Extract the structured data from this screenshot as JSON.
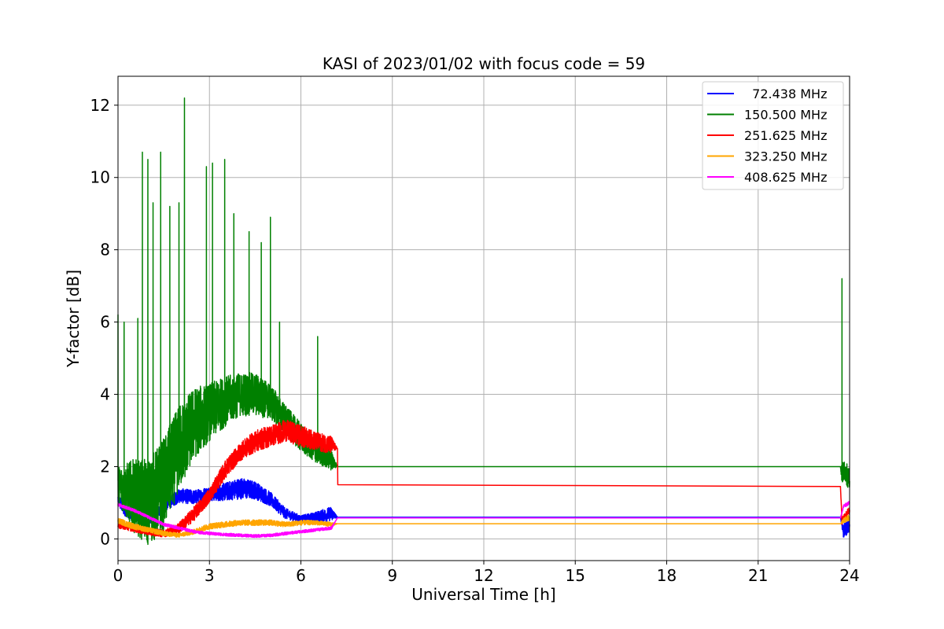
{
  "chart_data": {
    "type": "line",
    "title": "KASI of 2023/01/02 with focus code = 59",
    "xlabel": "Universal Time [h]",
    "ylabel": "Y-factor [dB]",
    "xlim": [
      0,
      24
    ],
    "ylim": [
      -0.6,
      12.8
    ],
    "xticks": [
      0,
      3,
      6,
      9,
      12,
      15,
      18,
      21,
      24
    ],
    "yticks": [
      0,
      2,
      4,
      6,
      8,
      10,
      12
    ],
    "grid": true,
    "legend_position": "top-right",
    "series": [
      {
        "name": "  72.438 MHz",
        "color": "#0000ff",
        "x": [
          0.0,
          0.2,
          0.5,
          1.0,
          1.5,
          2.0,
          2.5,
          3.0,
          3.5,
          4.0,
          4.5,
          5.0,
          5.5,
          6.0,
          6.5,
          7.0,
          7.2,
          23.7,
          23.8,
          24.0
        ],
        "y": [
          1.1,
          0.8,
          0.6,
          0.5,
          0.9,
          1.2,
          1.15,
          1.25,
          1.3,
          1.4,
          1.35,
          1.1,
          0.7,
          0.55,
          0.6,
          0.7,
          0.6,
          0.6,
          0.2,
          0.4
        ],
        "noise": [
          0.2,
          0.15,
          0.1,
          0.1,
          0.15,
          0.2,
          0.2,
          0.2,
          0.25,
          0.3,
          0.25,
          0.2,
          0.15,
          0.1,
          0.15,
          0.2,
          0.0,
          0.0,
          0.2,
          0.2
        ]
      },
      {
        "name": "150.500 MHz",
        "color": "#008000",
        "x": [
          0.0,
          0.5,
          1.0,
          1.5,
          2.0,
          2.5,
          3.0,
          3.5,
          4.0,
          4.5,
          5.0,
          5.5,
          6.0,
          6.5,
          7.0,
          7.2,
          23.7,
          23.75,
          23.85,
          24.0
        ],
        "y": [
          1.5,
          1.2,
          1.0,
          1.5,
          2.5,
          3.2,
          3.5,
          3.8,
          4.0,
          4.0,
          3.8,
          3.3,
          2.8,
          2.4,
          2.2,
          2.0,
          2.0,
          1.8,
          1.9,
          1.6
        ],
        "noise": [
          0.5,
          1.0,
          1.2,
          1.3,
          1.2,
          1.0,
          0.8,
          0.7,
          0.6,
          0.6,
          0.5,
          0.4,
          0.4,
          0.3,
          0.3,
          0.0,
          0.0,
          0.3,
          0.3,
          0.3
        ],
        "spikes": [
          [
            0.0,
            6.2
          ],
          [
            0.2,
            6.0
          ],
          [
            0.65,
            6.1
          ],
          [
            0.8,
            10.7
          ],
          [
            0.98,
            10.5
          ],
          [
            1.15,
            9.3
          ],
          [
            1.4,
            10.7
          ],
          [
            1.7,
            9.2
          ],
          [
            2.0,
            9.3
          ],
          [
            2.18,
            12.2
          ],
          [
            2.9,
            10.3
          ],
          [
            3.1,
            10.4
          ],
          [
            3.5,
            10.5
          ],
          [
            3.8,
            9.0
          ],
          [
            4.3,
            8.5
          ],
          [
            4.7,
            8.2
          ],
          [
            5.0,
            8.9
          ],
          [
            5.3,
            6.0
          ],
          [
            6.55,
            5.6
          ],
          [
            23.75,
            7.2
          ]
        ]
      },
      {
        "name": "251.625 MHz",
        "color": "#ff0000",
        "x": [
          0.0,
          0.5,
          1.0,
          1.5,
          2.0,
          2.5,
          3.0,
          3.5,
          4.0,
          4.5,
          5.0,
          5.5,
          6.0,
          6.5,
          7.0,
          7.2,
          7.21,
          23.7,
          23.75,
          24.0
        ],
        "y": [
          0.4,
          0.3,
          0.2,
          0.15,
          0.3,
          0.7,
          1.2,
          1.9,
          2.4,
          2.7,
          2.85,
          3.0,
          2.85,
          2.7,
          2.6,
          2.5,
          1.5,
          1.45,
          0.5,
          0.8
        ],
        "noise": [
          0.1,
          0.1,
          0.1,
          0.1,
          0.15,
          0.2,
          0.2,
          0.25,
          0.25,
          0.3,
          0.3,
          0.3,
          0.3,
          0.25,
          0.25,
          0.0,
          0.0,
          0.0,
          0.1,
          0.1
        ]
      },
      {
        "name": "323.250 MHz",
        "color": "#ffa500",
        "x": [
          0.0,
          0.5,
          1.0,
          1.5,
          2.0,
          2.5,
          3.0,
          3.5,
          4.0,
          4.5,
          5.0,
          5.5,
          6.0,
          6.5,
          7.0,
          7.2,
          23.7,
          23.8,
          24.0
        ],
        "y": [
          0.5,
          0.35,
          0.25,
          0.15,
          0.1,
          0.2,
          0.35,
          0.4,
          0.45,
          0.45,
          0.45,
          0.4,
          0.45,
          0.45,
          0.4,
          0.42,
          0.42,
          0.5,
          0.6
        ],
        "noise": [
          0.08,
          0.08,
          0.07,
          0.07,
          0.06,
          0.07,
          0.08,
          0.08,
          0.08,
          0.08,
          0.08,
          0.07,
          0.07,
          0.06,
          0.06,
          0.0,
          0.0,
          0.08,
          0.08
        ]
      },
      {
        "name": "408.625 MHz",
        "color": "#ff00ff",
        "x": [
          0.0,
          0.5,
          1.0,
          1.5,
          2.0,
          2.5,
          3.0,
          3.5,
          4.0,
          4.5,
          5.0,
          5.5,
          6.0,
          6.5,
          7.0,
          7.2,
          23.7,
          23.8,
          24.0
        ],
        "y": [
          0.95,
          0.8,
          0.6,
          0.4,
          0.3,
          0.2,
          0.15,
          0.12,
          0.1,
          0.08,
          0.1,
          0.15,
          0.2,
          0.25,
          0.3,
          0.58,
          0.58,
          0.9,
          1.0
        ],
        "noise": [
          0.04,
          0.04,
          0.04,
          0.04,
          0.04,
          0.04,
          0.04,
          0.04,
          0.04,
          0.04,
          0.04,
          0.04,
          0.04,
          0.04,
          0.04,
          0.0,
          0.0,
          0.05,
          0.05
        ]
      }
    ]
  }
}
